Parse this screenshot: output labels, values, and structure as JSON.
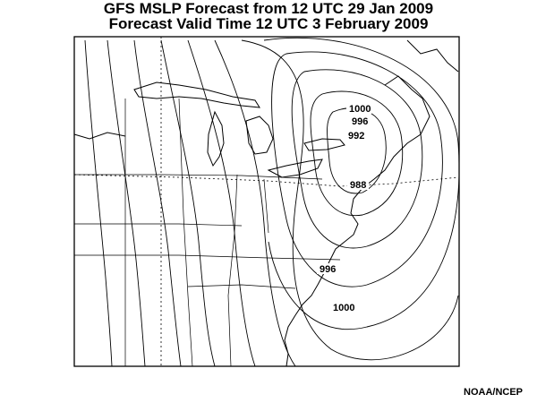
{
  "title": {
    "line1": "GFS MSLP Forecast from 12 UTC 29 Jan 2009",
    "line2": "Forecast Valid Time 12 UTC 3 February 2009"
  },
  "isobar_labels": [
    "1000",
    "996",
    "992",
    "988",
    "996",
    "1000"
  ],
  "credit": "NOAA/NCEP",
  "colors": {
    "line": "#000000",
    "background": "#ffffff"
  }
}
